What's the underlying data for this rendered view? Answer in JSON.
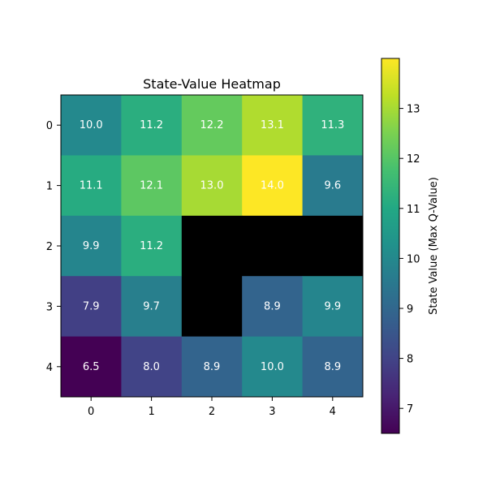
{
  "chart_data": {
    "type": "heatmap",
    "title": "State-Value Heatmap",
    "x_ticks": [
      "0",
      "1",
      "2",
      "3",
      "4"
    ],
    "y_ticks": [
      "0",
      "1",
      "2",
      "3",
      "4"
    ],
    "values": [
      [
        10.0,
        11.2,
        12.2,
        13.1,
        11.3
      ],
      [
        11.1,
        12.1,
        13.0,
        14.0,
        9.6
      ],
      [
        9.9,
        11.2,
        null,
        null,
        null
      ],
      [
        7.9,
        9.7,
        null,
        8.9,
        9.9
      ],
      [
        6.5,
        8.0,
        8.9,
        10.0,
        8.9
      ]
    ],
    "value_labels": [
      [
        "10.0",
        "11.2",
        "12.2",
        "13.1",
        "11.3"
      ],
      [
        "11.1",
        "12.1",
        "13.0",
        "14.0",
        "9.6"
      ],
      [
        "9.9",
        "11.2",
        "",
        "",
        ""
      ],
      [
        "7.9",
        "9.7",
        "",
        "8.9",
        "9.9"
      ],
      [
        "6.5",
        "8.0",
        "8.9",
        "10.0",
        "8.9"
      ]
    ],
    "blocked_color": "#000000",
    "label_color": "#ffffff",
    "colormap": "viridis",
    "colorbar": {
      "label": "State Value (Max Q-Value)",
      "range": [
        6.5,
        14.0
      ],
      "ticks": [
        7,
        8,
        9,
        10,
        11,
        12,
        13
      ],
      "tick_labels": [
        "7",
        "8",
        "9",
        "10",
        "11",
        "12",
        "13"
      ]
    }
  }
}
